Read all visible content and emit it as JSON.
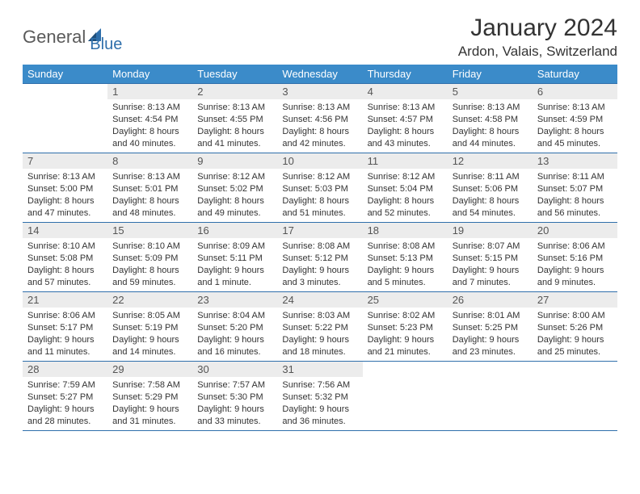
{
  "logo": {
    "part1": "General",
    "part2": "Blue"
  },
  "title": "January 2024",
  "subtitle": "Ardon, Valais, Switzerland",
  "colors": {
    "header_bg": "#3b8bc9",
    "header_text": "#ffffff",
    "border": "#2f6fab",
    "daynum_bg": "#ececec",
    "daynum_text": "#555555",
    "body_text": "#333333",
    "logo_gray": "#5a5a5a",
    "logo_blue": "#2f6fab",
    "page_bg": "#ffffff"
  },
  "typography": {
    "title_fontsize": 30,
    "subtitle_fontsize": 17,
    "header_fontsize": 13,
    "daynum_fontsize": 13,
    "body_fontsize": 11
  },
  "weekdays": [
    "Sunday",
    "Monday",
    "Tuesday",
    "Wednesday",
    "Thursday",
    "Friday",
    "Saturday"
  ],
  "weeks": [
    [
      {
        "n": "",
        "sr": "",
        "ss": "",
        "dl": ""
      },
      {
        "n": "1",
        "sr": "Sunrise: 8:13 AM",
        "ss": "Sunset: 4:54 PM",
        "dl": "Daylight: 8 hours and 40 minutes."
      },
      {
        "n": "2",
        "sr": "Sunrise: 8:13 AM",
        "ss": "Sunset: 4:55 PM",
        "dl": "Daylight: 8 hours and 41 minutes."
      },
      {
        "n": "3",
        "sr": "Sunrise: 8:13 AM",
        "ss": "Sunset: 4:56 PM",
        "dl": "Daylight: 8 hours and 42 minutes."
      },
      {
        "n": "4",
        "sr": "Sunrise: 8:13 AM",
        "ss": "Sunset: 4:57 PM",
        "dl": "Daylight: 8 hours and 43 minutes."
      },
      {
        "n": "5",
        "sr": "Sunrise: 8:13 AM",
        "ss": "Sunset: 4:58 PM",
        "dl": "Daylight: 8 hours and 44 minutes."
      },
      {
        "n": "6",
        "sr": "Sunrise: 8:13 AM",
        "ss": "Sunset: 4:59 PM",
        "dl": "Daylight: 8 hours and 45 minutes."
      }
    ],
    [
      {
        "n": "7",
        "sr": "Sunrise: 8:13 AM",
        "ss": "Sunset: 5:00 PM",
        "dl": "Daylight: 8 hours and 47 minutes."
      },
      {
        "n": "8",
        "sr": "Sunrise: 8:13 AM",
        "ss": "Sunset: 5:01 PM",
        "dl": "Daylight: 8 hours and 48 minutes."
      },
      {
        "n": "9",
        "sr": "Sunrise: 8:12 AM",
        "ss": "Sunset: 5:02 PM",
        "dl": "Daylight: 8 hours and 49 minutes."
      },
      {
        "n": "10",
        "sr": "Sunrise: 8:12 AM",
        "ss": "Sunset: 5:03 PM",
        "dl": "Daylight: 8 hours and 51 minutes."
      },
      {
        "n": "11",
        "sr": "Sunrise: 8:12 AM",
        "ss": "Sunset: 5:04 PM",
        "dl": "Daylight: 8 hours and 52 minutes."
      },
      {
        "n": "12",
        "sr": "Sunrise: 8:11 AM",
        "ss": "Sunset: 5:06 PM",
        "dl": "Daylight: 8 hours and 54 minutes."
      },
      {
        "n": "13",
        "sr": "Sunrise: 8:11 AM",
        "ss": "Sunset: 5:07 PM",
        "dl": "Daylight: 8 hours and 56 minutes."
      }
    ],
    [
      {
        "n": "14",
        "sr": "Sunrise: 8:10 AM",
        "ss": "Sunset: 5:08 PM",
        "dl": "Daylight: 8 hours and 57 minutes."
      },
      {
        "n": "15",
        "sr": "Sunrise: 8:10 AM",
        "ss": "Sunset: 5:09 PM",
        "dl": "Daylight: 8 hours and 59 minutes."
      },
      {
        "n": "16",
        "sr": "Sunrise: 8:09 AM",
        "ss": "Sunset: 5:11 PM",
        "dl": "Daylight: 9 hours and 1 minute."
      },
      {
        "n": "17",
        "sr": "Sunrise: 8:08 AM",
        "ss": "Sunset: 5:12 PM",
        "dl": "Daylight: 9 hours and 3 minutes."
      },
      {
        "n": "18",
        "sr": "Sunrise: 8:08 AM",
        "ss": "Sunset: 5:13 PM",
        "dl": "Daylight: 9 hours and 5 minutes."
      },
      {
        "n": "19",
        "sr": "Sunrise: 8:07 AM",
        "ss": "Sunset: 5:15 PM",
        "dl": "Daylight: 9 hours and 7 minutes."
      },
      {
        "n": "20",
        "sr": "Sunrise: 8:06 AM",
        "ss": "Sunset: 5:16 PM",
        "dl": "Daylight: 9 hours and 9 minutes."
      }
    ],
    [
      {
        "n": "21",
        "sr": "Sunrise: 8:06 AM",
        "ss": "Sunset: 5:17 PM",
        "dl": "Daylight: 9 hours and 11 minutes."
      },
      {
        "n": "22",
        "sr": "Sunrise: 8:05 AM",
        "ss": "Sunset: 5:19 PM",
        "dl": "Daylight: 9 hours and 14 minutes."
      },
      {
        "n": "23",
        "sr": "Sunrise: 8:04 AM",
        "ss": "Sunset: 5:20 PM",
        "dl": "Daylight: 9 hours and 16 minutes."
      },
      {
        "n": "24",
        "sr": "Sunrise: 8:03 AM",
        "ss": "Sunset: 5:22 PM",
        "dl": "Daylight: 9 hours and 18 minutes."
      },
      {
        "n": "25",
        "sr": "Sunrise: 8:02 AM",
        "ss": "Sunset: 5:23 PM",
        "dl": "Daylight: 9 hours and 21 minutes."
      },
      {
        "n": "26",
        "sr": "Sunrise: 8:01 AM",
        "ss": "Sunset: 5:25 PM",
        "dl": "Daylight: 9 hours and 23 minutes."
      },
      {
        "n": "27",
        "sr": "Sunrise: 8:00 AM",
        "ss": "Sunset: 5:26 PM",
        "dl": "Daylight: 9 hours and 25 minutes."
      }
    ],
    [
      {
        "n": "28",
        "sr": "Sunrise: 7:59 AM",
        "ss": "Sunset: 5:27 PM",
        "dl": "Daylight: 9 hours and 28 minutes."
      },
      {
        "n": "29",
        "sr": "Sunrise: 7:58 AM",
        "ss": "Sunset: 5:29 PM",
        "dl": "Daylight: 9 hours and 31 minutes."
      },
      {
        "n": "30",
        "sr": "Sunrise: 7:57 AM",
        "ss": "Sunset: 5:30 PM",
        "dl": "Daylight: 9 hours and 33 minutes."
      },
      {
        "n": "31",
        "sr": "Sunrise: 7:56 AM",
        "ss": "Sunset: 5:32 PM",
        "dl": "Daylight: 9 hours and 36 minutes."
      },
      {
        "n": "",
        "sr": "",
        "ss": "",
        "dl": ""
      },
      {
        "n": "",
        "sr": "",
        "ss": "",
        "dl": ""
      },
      {
        "n": "",
        "sr": "",
        "ss": "",
        "dl": ""
      }
    ]
  ]
}
